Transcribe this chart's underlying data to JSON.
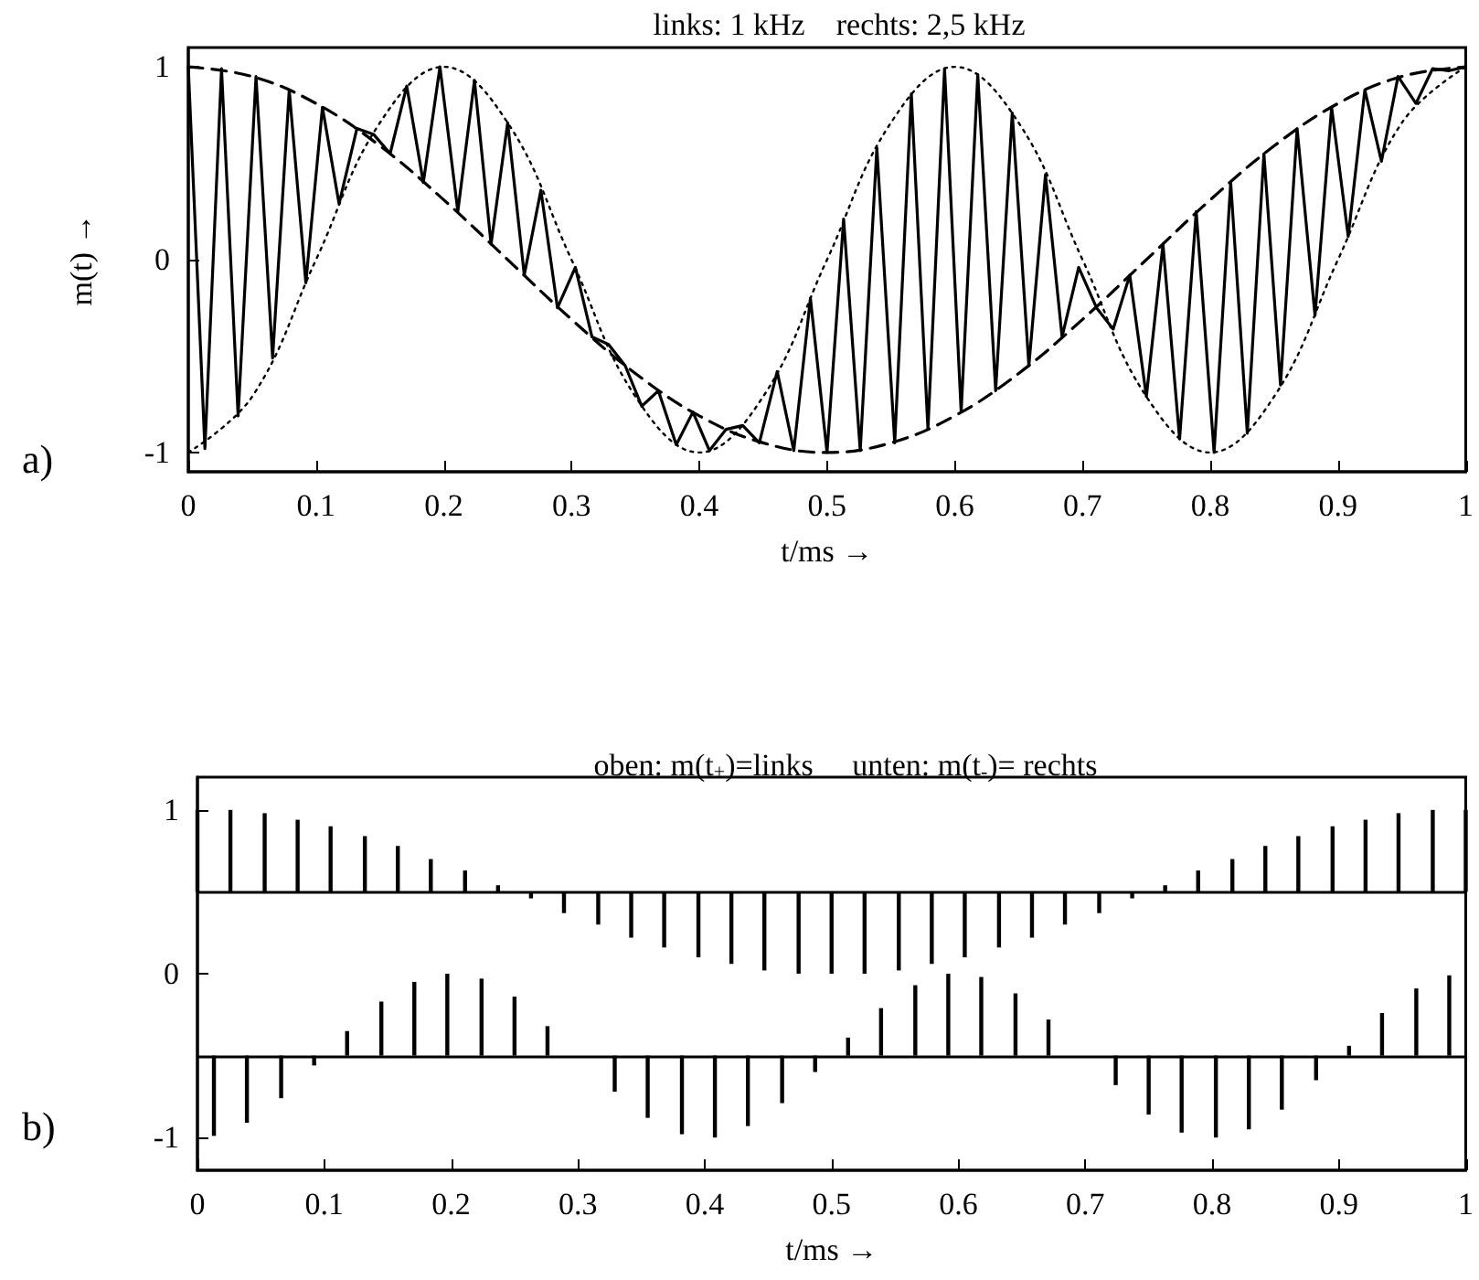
{
  "chart_data": [
    {
      "type": "line",
      "title": "links: 1 kHz    rechts: 2,5 kHz",
      "xlabel": "t/ms →",
      "ylabel": "m(t) →",
      "annotations": [
        "a)"
      ],
      "xlim": [
        0,
        1
      ],
      "xticks": [
        0,
        0.1,
        0.2,
        0.3,
        0.4,
        0.5,
        0.6,
        0.7,
        0.8,
        0.9,
        1
      ],
      "ylim": [
        -1.1,
        1.1
      ],
      "yticks": [
        -1,
        0,
        1
      ],
      "marker": "none",
      "series": [
        {
          "color": "#000000",
          "line_style": "solid",
          "x": [
            0,
            0.013,
            0.026,
            0.039,
            0.053,
            0.066,
            0.079,
            0.092,
            0.105,
            0.118,
            0.132,
            0.145,
            0.158,
            0.171,
            0.184,
            0.197,
            0.211,
            0.224,
            0.237,
            0.25,
            0.263,
            0.276,
            0.289,
            0.303,
            0.316,
            0.329,
            0.342,
            0.355,
            0.368,
            0.382,
            0.395,
            0.408,
            0.421,
            0.434,
            0.447,
            0.461,
            0.474,
            0.487,
            0.5,
            0.513,
            0.526,
            0.539,
            0.553,
            0.566,
            0.579,
            0.592,
            0.605,
            0.618,
            0.632,
            0.645,
            0.658,
            0.671,
            0.684,
            0.697,
            0.711,
            0.724,
            0.737,
            0.75,
            0.763,
            0.776,
            0.789,
            0.803,
            0.816,
            0.829,
            0.842,
            0.855,
            0.868,
            0.882,
            0.895,
            0.908,
            0.921,
            0.934,
            0.947,
            0.961,
            0.974,
            0.987,
            1.0
          ],
          "values": [
            1.0,
            -0.98,
            0.99,
            -0.81,
            0.95,
            -0.51,
            0.88,
            -0.12,
            0.79,
            0.29,
            0.68,
            0.65,
            0.55,
            0.9,
            0.4,
            1.0,
            0.25,
            0.93,
            0.08,
            0.71,
            -0.08,
            0.36,
            -0.25,
            -0.04,
            -0.4,
            -0.44,
            -0.55,
            -0.76,
            -0.68,
            -0.96,
            -0.79,
            -0.99,
            -0.88,
            -0.86,
            -0.95,
            -0.58,
            -0.99,
            -0.2,
            -1.0,
            0.21,
            -0.99,
            0.58,
            -0.95,
            0.86,
            -0.88,
            0.99,
            -0.79,
            0.96,
            -0.68,
            0.76,
            -0.55,
            0.44,
            -0.4,
            -0.04,
            -0.25,
            -0.36,
            -0.08,
            -0.71,
            0.08,
            -0.93,
            0.25,
            -1.0,
            0.4,
            -0.9,
            0.55,
            -0.65,
            0.68,
            -0.29,
            0.79,
            0.12,
            0.88,
            0.51,
            0.95,
            0.81,
            0.99,
            0.98,
            1.0
          ]
        },
        {
          "color": "#000000",
          "line_style": "dashed",
          "x": [
            0,
            0.05,
            0.1,
            0.15,
            0.2,
            0.25,
            0.3,
            0.35,
            0.4,
            0.45,
            0.5,
            0.55,
            0.6,
            0.65,
            0.7,
            0.75,
            0.8,
            0.85,
            0.9,
            0.95,
            1
          ],
          "values": [
            1,
            0.95,
            0.81,
            0.59,
            0.31,
            0,
            -0.31,
            -0.59,
            -0.81,
            -0.95,
            -1,
            -0.95,
            -0.81,
            -0.59,
            -0.31,
            0,
            0.31,
            0.59,
            0.81,
            0.95,
            1
          ]
        },
        {
          "color": "#000000",
          "line_style": "dotted",
          "x": [
            0,
            0.05,
            0.1,
            0.15,
            0.2,
            0.25,
            0.3,
            0.35,
            0.4,
            0.45,
            0.5,
            0.55,
            0.6,
            0.65,
            0.7,
            0.75,
            0.8,
            0.85,
            0.9,
            0.95,
            1
          ],
          "values": [
            -1,
            -0.71,
            0,
            0.71,
            1,
            0.71,
            0,
            -0.71,
            -1,
            -0.71,
            0,
            0.71,
            1,
            0.71,
            0,
            -0.71,
            -1,
            -0.71,
            0,
            0.71,
            1
          ]
        }
      ]
    },
    {
      "type": "bar",
      "title": "oben: m(t$_{+}$)=links     unten: m(t$_{-}$)= rechts",
      "xlabel": "t/ms →",
      "annotations": [
        "b)"
      ],
      "xlim": [
        0,
        1
      ],
      "xticks": [
        0,
        0.1,
        0.2,
        0.3,
        0.4,
        0.5,
        0.6,
        0.7,
        0.8,
        0.9,
        1
      ],
      "ylim": [
        -1.2,
        1.2
      ],
      "yticks": [
        -1,
        0,
        1
      ],
      "ref_lines": [
        {
          "axis": "y",
          "value": 0.5,
          "color": "#000000"
        },
        {
          "axis": "y",
          "value": -0.5,
          "color": "#000000"
        }
      ],
      "series": [
        {
          "color": "#000000",
          "x": [
            0,
            0.026,
            0.053,
            0.079,
            0.105,
            0.132,
            0.158,
            0.184,
            0.211,
            0.237,
            0.263,
            0.289,
            0.316,
            0.342,
            0.368,
            0.395,
            0.421,
            0.447,
            0.474,
            0.5,
            0.526,
            0.553,
            0.579,
            0.605,
            0.632,
            0.658,
            0.684,
            0.711,
            0.737,
            0.763,
            0.789,
            0.816,
            0.842,
            0.868,
            0.895,
            0.921,
            0.947,
            0.974,
            1.0
          ],
          "base": [
            0.5,
            0.5,
            0.5,
            0.5,
            0.5,
            0.5,
            0.5,
            0.5,
            0.5,
            0.5,
            0.5,
            0.5,
            0.5,
            0.5,
            0.5,
            0.5,
            0.5,
            0.5,
            0.5,
            0.5,
            0.5,
            0.5,
            0.5,
            0.5,
            0.5,
            0.5,
            0.5,
            0.5,
            0.5,
            0.5,
            0.5,
            0.5,
            0.5,
            0.5,
            0.5,
            0.5,
            0.5,
            0.5,
            0.5
          ],
          "values": [
            0.5,
            0.5,
            0.48,
            0.44,
            0.4,
            0.34,
            0.28,
            0.2,
            0.13,
            0.04,
            -0.04,
            -0.13,
            -0.2,
            -0.28,
            -0.34,
            -0.4,
            -0.44,
            -0.48,
            -0.5,
            -0.5,
            -0.5,
            -0.48,
            -0.44,
            -0.4,
            -0.34,
            -0.28,
            -0.2,
            -0.13,
            -0.04,
            0.04,
            0.13,
            0.2,
            0.28,
            0.34,
            0.4,
            0.44,
            0.48,
            0.5,
            0.5
          ]
        },
        {
          "color": "#000000",
          "x": [
            0.013,
            0.039,
            0.066,
            0.092,
            0.118,
            0.145,
            0.171,
            0.197,
            0.224,
            0.25,
            0.276,
            0.303,
            0.329,
            0.355,
            0.382,
            0.408,
            0.434,
            0.461,
            0.487,
            0.513,
            0.539,
            0.566,
            0.592,
            0.618,
            0.645,
            0.671,
            0.697,
            0.724,
            0.75,
            0.776,
            0.803,
            0.829,
            0.855,
            0.882,
            0.908,
            0.934,
            0.961,
            0.987
          ],
          "base": [
            -0.5,
            -0.5,
            -0.5,
            -0.5,
            -0.5,
            -0.5,
            -0.5,
            -0.5,
            -0.5,
            -0.5,
            -0.5,
            null,
            -0.5,
            -0.5,
            -0.5,
            -0.5,
            -0.5,
            -0.5,
            -0.5,
            -0.5,
            -0.5,
            -0.5,
            -0.5,
            -0.5,
            -0.5,
            -0.5,
            null,
            -0.5,
            -0.5,
            -0.5,
            -0.5,
            -0.5,
            -0.5,
            -0.5,
            -0.5,
            -0.5,
            -0.5,
            -0.5
          ],
          "values": [
            -0.49,
            -0.41,
            -0.26,
            -0.06,
            0.15,
            0.33,
            0.45,
            0.5,
            0.47,
            0.36,
            0.18,
            null,
            -0.22,
            -0.38,
            -0.48,
            -0.5,
            -0.43,
            -0.29,
            -0.1,
            0.11,
            0.29,
            0.43,
            0.5,
            0.48,
            0.38,
            0.22,
            null,
            -0.18,
            -0.36,
            -0.47,
            -0.5,
            -0.45,
            -0.33,
            -0.15,
            0.06,
            0.26,
            0.41,
            0.49
          ]
        }
      ]
    }
  ]
}
